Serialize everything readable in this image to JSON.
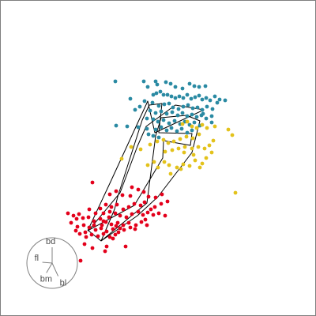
{
  "chart_data": {
    "type": "scatter",
    "title": "",
    "xlabel": "",
    "ylabel": "",
    "grid": false,
    "legend": "none",
    "colors": {
      "teal": "#2a8aa3",
      "yellow": "#e3c21b",
      "red": "#e3001b",
      "edge": "#000000",
      "axis": "#808080"
    },
    "projection_axes": [
      {
        "name": "bd",
        "dx": 0.0,
        "dy": -1.0
      },
      {
        "name": "fl",
        "dx": -0.62,
        "dy": -0.05
      },
      {
        "name": "bm",
        "dx": -0.38,
        "dy": 0.65
      },
      {
        "name": "bl",
        "dx": 0.33,
        "dy": 0.72
      }
    ],
    "series": [
      {
        "color": "teal",
        "points": [
          [
            146,
            103
          ],
          [
            182,
            103
          ],
          [
            197,
            103
          ],
          [
            199,
            107
          ],
          [
            210,
            104
          ],
          [
            216,
            106
          ],
          [
            222,
            110
          ],
          [
            231,
            112
          ],
          [
            240,
            106
          ],
          [
            246,
            109
          ],
          [
            252,
            110
          ],
          [
            260,
            109
          ],
          [
            194,
            120
          ],
          [
            198,
            118
          ],
          [
            203,
            116
          ],
          [
            207,
            120
          ],
          [
            212,
            120
          ],
          [
            217,
            122
          ],
          [
            222,
            124
          ],
          [
            227,
            122
          ],
          [
            232,
            124
          ],
          [
            237,
            120
          ],
          [
            242,
            125
          ],
          [
            247,
            123
          ],
          [
            252,
            121
          ],
          [
            256,
            126
          ],
          [
            261,
            124
          ],
          [
            266,
            127
          ],
          [
            272,
            122
          ],
          [
            278,
            126
          ],
          [
            285,
            127
          ],
          [
            165,
            125
          ],
          [
            183,
            128
          ],
          [
            193,
            130
          ],
          [
            201,
            134
          ],
          [
            208,
            132
          ],
          [
            214,
            131
          ],
          [
            219,
            136
          ],
          [
            226,
            138
          ],
          [
            232,
            135
          ],
          [
            238,
            133
          ],
          [
            244,
            137
          ],
          [
            250,
            136
          ],
          [
            256,
            139
          ],
          [
            262,
            135
          ],
          [
            269,
            138
          ],
          [
            177,
            135
          ],
          [
            171,
            139
          ],
          [
            190,
            140
          ],
          [
            197,
            143
          ],
          [
            204,
            141
          ],
          [
            211,
            144
          ],
          [
            218,
            142
          ],
          [
            225,
            146
          ],
          [
            231,
            143
          ],
          [
            237,
            147
          ],
          [
            243,
            145
          ],
          [
            249,
            148
          ],
          [
            255,
            146
          ],
          [
            261,
            150
          ],
          [
            268,
            147
          ],
          [
            268,
            155
          ],
          [
            186,
            150
          ],
          [
            194,
            151
          ],
          [
            200,
            154
          ],
          [
            207,
            152
          ],
          [
            214,
            156
          ],
          [
            221,
            153
          ],
          [
            228,
            157
          ],
          [
            234,
            154
          ],
          [
            240,
            158
          ],
          [
            246,
            155
          ],
          [
            253,
            159
          ],
          [
            197,
            164
          ],
          [
            204,
            161
          ],
          [
            211,
            165
          ],
          [
            217,
            162
          ],
          [
            224,
            166
          ],
          [
            230,
            163
          ],
          [
            237,
            168
          ],
          [
            243,
            165
          ],
          [
            186,
            163
          ],
          [
            188,
            170
          ],
          [
            194,
            172
          ],
          [
            201,
            174
          ],
          [
            175,
            161
          ],
          [
            161,
            160
          ],
          [
            147,
            159
          ],
          [
            257,
            144
          ],
          [
            275,
            130
          ],
          [
            187,
            110
          ]
        ]
      },
      {
        "color": "yellow",
        "points": [
          [
            231,
            157
          ],
          [
            237,
            154
          ],
          [
            243,
            160
          ],
          [
            249,
            162
          ],
          [
            256,
            158
          ],
          [
            262,
            162
          ],
          [
            272,
            160
          ],
          [
            289,
            164
          ],
          [
            294,
            171
          ],
          [
            252,
            170
          ],
          [
            244,
            175
          ],
          [
            236,
            173
          ],
          [
            228,
            176
          ],
          [
            220,
            179
          ],
          [
            213,
            181
          ],
          [
            207,
            177
          ],
          [
            199,
            179
          ],
          [
            190,
            183
          ],
          [
            178,
            189
          ],
          [
            166,
            186
          ],
          [
            209,
            192
          ],
          [
            218,
            190
          ],
          [
            226,
            188
          ],
          [
            234,
            186
          ],
          [
            243,
            188
          ],
          [
            251,
            186
          ],
          [
            259,
            188
          ],
          [
            265,
            184
          ],
          [
            270,
            178
          ],
          [
            268,
            193
          ],
          [
            261,
            200
          ],
          [
            256,
            207
          ],
          [
            247,
            203
          ],
          [
            240,
            210
          ],
          [
            232,
            208
          ],
          [
            224,
            212
          ],
          [
            214,
            209
          ],
          [
            208,
            205
          ],
          [
            200,
            212
          ],
          [
            195,
            205
          ],
          [
            187,
            209
          ],
          [
            216,
            220
          ],
          [
            229,
            214
          ],
          [
            253,
            212
          ],
          [
            154,
            201
          ],
          [
            298,
            244
          ],
          [
            233,
            193
          ],
          [
            245,
            196
          ]
        ]
      },
      {
        "color": "red",
        "points": [
          [
            117,
            231
          ],
          [
            167,
            237
          ],
          [
            175,
            240
          ],
          [
            147,
            242
          ],
          [
            139,
            246
          ],
          [
            155,
            247
          ],
          [
            165,
            248
          ],
          [
            182,
            243
          ],
          [
            188,
            249
          ],
          [
            197,
            250
          ],
          [
            205,
            246
          ],
          [
            212,
            255
          ],
          [
            204,
            258
          ],
          [
            196,
            262
          ],
          [
            191,
            265
          ],
          [
            183,
            256
          ],
          [
            178,
            260
          ],
          [
            170,
            258
          ],
          [
            163,
            262
          ],
          [
            156,
            265
          ],
          [
            148,
            259
          ],
          [
            141,
            262
          ],
          [
            134,
            259
          ],
          [
            127,
            264
          ],
          [
            131,
            270
          ],
          [
            139,
            268
          ],
          [
            146,
            270
          ],
          [
            152,
            273
          ],
          [
            160,
            275
          ],
          [
            167,
            271
          ],
          [
            175,
            268
          ],
          [
            181,
            272
          ],
          [
            187,
            269
          ],
          [
            194,
            272
          ],
          [
            201,
            270
          ],
          [
            209,
            273
          ],
          [
            86,
            270
          ],
          [
            93,
            273
          ],
          [
            100,
            271
          ],
          [
            97,
            277
          ],
          [
            105,
            276
          ],
          [
            112,
            275
          ],
          [
            119,
            280
          ],
          [
            127,
            277
          ],
          [
            134,
            281
          ],
          [
            141,
            284
          ],
          [
            149,
            282
          ],
          [
            156,
            285
          ],
          [
            163,
            282
          ],
          [
            172,
            285
          ],
          [
            179,
            281
          ],
          [
            90,
            282
          ],
          [
            98,
            287
          ],
          [
            106,
            285
          ],
          [
            113,
            288
          ],
          [
            121,
            291
          ],
          [
            128,
            289
          ],
          [
            135,
            293
          ],
          [
            143,
            290
          ],
          [
            150,
            294
          ],
          [
            157,
            291
          ],
          [
            165,
            288
          ],
          [
            101,
            296
          ],
          [
            108,
            294
          ],
          [
            116,
            297
          ],
          [
            124,
            299
          ],
          [
            131,
            296
          ],
          [
            139,
            300
          ],
          [
            146,
            297
          ],
          [
            107,
            309
          ],
          [
            117,
            314
          ],
          [
            135,
            312
          ],
          [
            133,
            318
          ],
          [
            102,
            330
          ],
          [
            159,
            312
          ],
          [
            171,
            290
          ],
          [
            184,
            278
          ],
          [
            131,
            280
          ],
          [
            121,
            270
          ],
          [
            113,
            265
          ],
          [
            96,
            292
          ],
          [
            109,
            300
          ],
          [
            143,
            302
          ],
          [
            152,
            289
          ],
          [
            119,
            285
          ],
          [
            147,
            286
          ],
          [
            186,
            285
          ],
          [
            138,
            275
          ],
          [
            129,
            285
          ]
        ]
      }
    ]
  }
}
